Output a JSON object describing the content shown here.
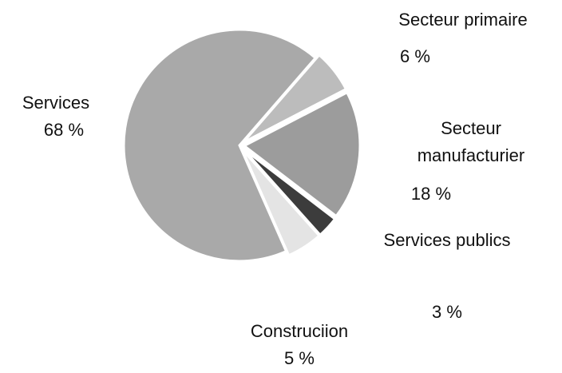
{
  "chart_data": {
    "type": "pie",
    "categories": [
      "Secteur primaire",
      "Secteur manufacturier",
      "Services publics",
      "Construciion",
      "Services"
    ],
    "values": [
      6,
      18,
      3,
      5,
      68
    ],
    "value_labels": [
      "6 %",
      "18 %",
      "3 %",
      "5 %",
      "68 %"
    ],
    "colors": [
      "#bcbcbc",
      "#9c9c9c",
      "#3c3c3c",
      "#e4e4e4",
      "#a9a9a9"
    ]
  }
}
